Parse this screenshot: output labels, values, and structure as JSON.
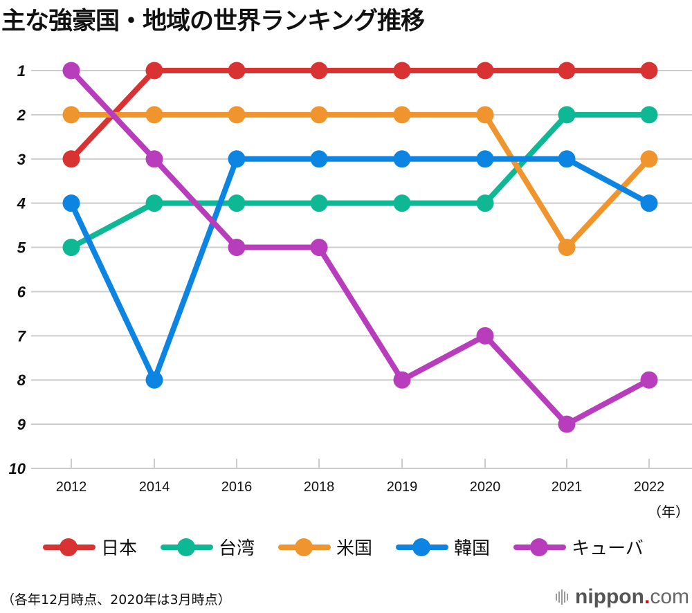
{
  "title": "主な強豪国・地域の世界ランキング推移",
  "x_unit": "（年）",
  "note": "（各年12月時点、2020年は3月時点）",
  "brand": {
    "name": "nippon",
    "dot": ".",
    "tld": "com",
    "icon": "sound-bars-icon"
  },
  "chart_data": {
    "type": "line",
    "title": "主な強豪国・地域の世界ランキング推移",
    "xlabel": "（年）",
    "ylabel": "",
    "categories": [
      "2012",
      "2014",
      "2016",
      "2018",
      "2019",
      "2020",
      "2021",
      "2022"
    ],
    "y_ticks": [
      "1",
      "2",
      "3",
      "4",
      "5",
      "6",
      "7",
      "8",
      "9",
      "10"
    ],
    "ylim": [
      1,
      10
    ],
    "y_inverted": true,
    "grid": true,
    "legend_position": "bottom",
    "series": [
      {
        "name": "日本",
        "color": "#d93232",
        "values": [
          3,
          1,
          1,
          1,
          1,
          1,
          1,
          1
        ]
      },
      {
        "name": "台湾",
        "color": "#0fb894",
        "values": [
          5,
          4,
          4,
          4,
          4,
          4,
          2,
          2
        ]
      },
      {
        "name": "米国",
        "color": "#f0952e",
        "values": [
          2,
          2,
          2,
          2,
          2,
          2,
          5,
          3
        ]
      },
      {
        "name": "韓国",
        "color": "#0b84e2",
        "values": [
          4,
          8,
          3,
          3,
          3,
          3,
          3,
          4
        ]
      },
      {
        "name": "キューバ",
        "color": "#b83dbd",
        "values": [
          1,
          3,
          5,
          5,
          8,
          7,
          9,
          8
        ]
      }
    ],
    "annotations": [
      "（各年12月時点、2020年は3月時点）"
    ]
  }
}
